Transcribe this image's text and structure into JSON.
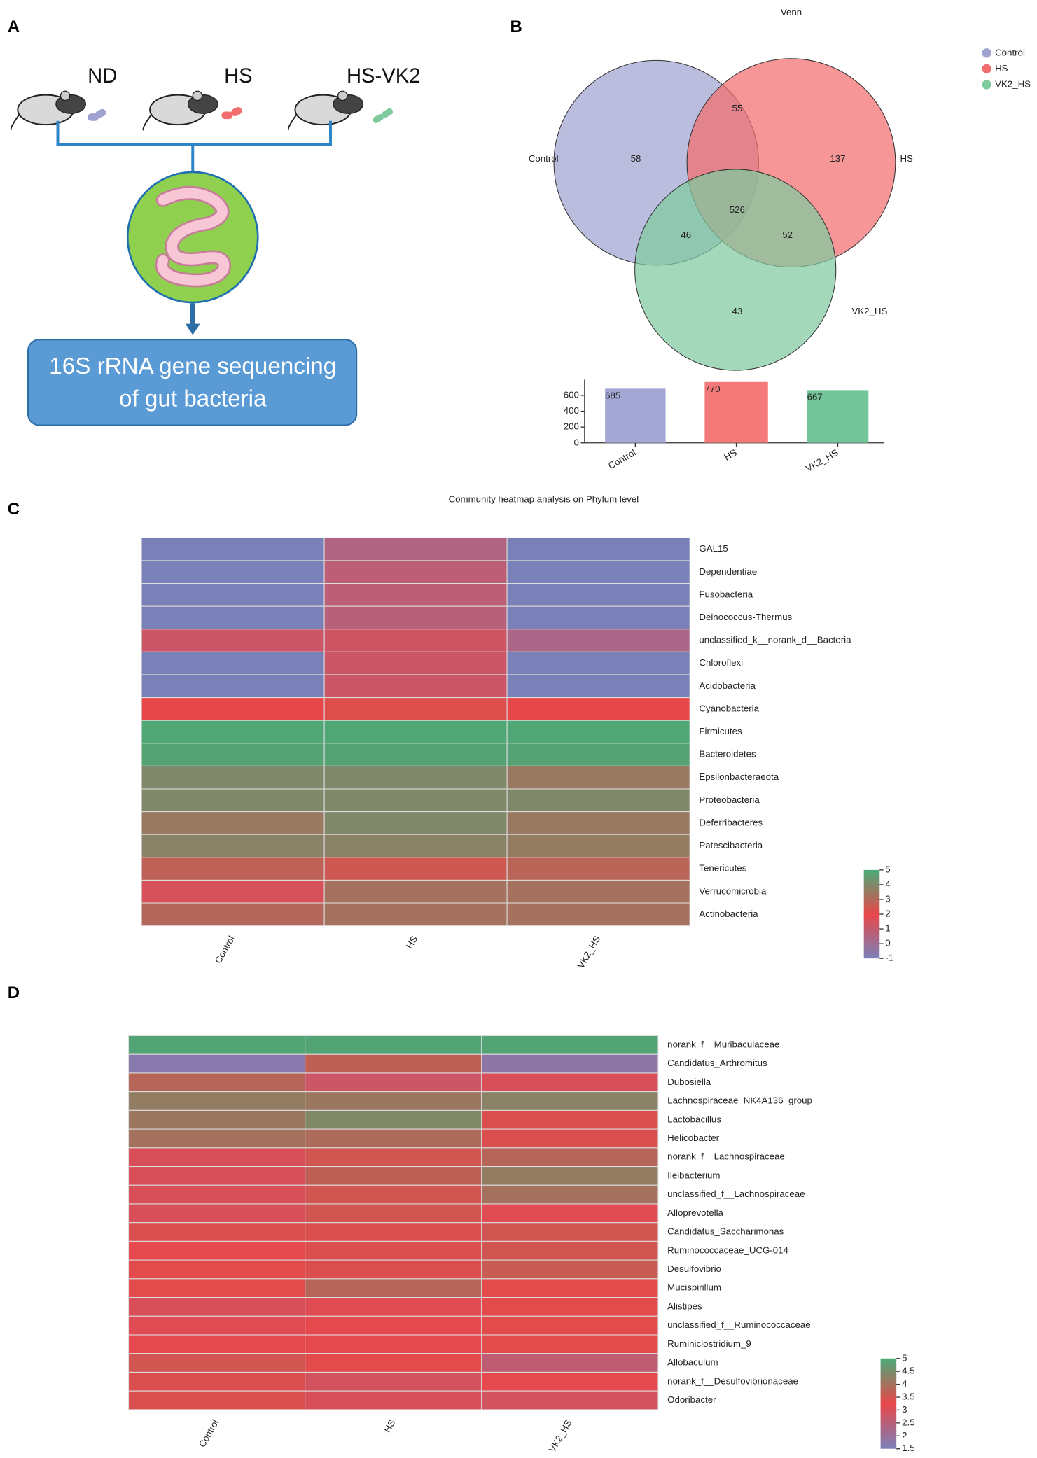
{
  "panels": {
    "labels": [
      "A",
      "B",
      "C",
      "D"
    ]
  },
  "diagram": {
    "groups": [
      "ND",
      "HS",
      "HS-VK2"
    ],
    "box_lines": [
      "16S rRNA gene sequencing",
      "of gut bacteria"
    ]
  },
  "chart_data": [
    {
      "type": "venn",
      "title": "Venn",
      "sets": [
        {
          "name": "Control",
          "color": "#9fa3d1"
        },
        {
          "name": "HS",
          "color": "#f26d6d"
        },
        {
          "name": "VK2_HS",
          "color": "#7fcb9f"
        }
      ],
      "regions": [
        {
          "sets": [
            0
          ],
          "value": 58
        },
        {
          "sets": [
            0,
            1
          ],
          "value": 55
        },
        {
          "sets": [
            1
          ],
          "value": 137
        },
        {
          "sets": [
            0,
            2
          ],
          "value": 46
        },
        {
          "sets": [
            0,
            1,
            2
          ],
          "value": 526
        },
        {
          "sets": [
            1,
            2
          ],
          "value": 52
        },
        {
          "sets": [
            2
          ],
          "value": 43
        }
      ]
    },
    {
      "type": "bar",
      "categories": [
        "Control",
        "HS",
        "VK2_HS"
      ],
      "values": [
        685,
        770,
        667
      ],
      "colors": [
        "#a3a8d4",
        "#f47a7a",
        "#74c69a"
      ],
      "ylim": [
        0,
        800
      ],
      "yticks": [
        0,
        200,
        400,
        600
      ]
    },
    {
      "type": "heatmap",
      "title": "Community heatmap analysis on Phylum level",
      "columns": [
        "Control",
        "HS",
        "VK2_HS"
      ],
      "rows": [
        "GAL15",
        "Dependentiae",
        "Fusobacteria",
        "Deinococcus-Thermus",
        "unclassified_k__norank_d__Bacteria",
        "Chloroflexi",
        "Acidobacteria",
        "Cyanobacteria",
        "Firmicutes",
        "Bacteroidetes",
        "Epsilonbacteraeota",
        "Proteobacteria",
        "Deferribacteres",
        "Patescibacteria",
        "Tenericutes",
        "Verrucomicrobia",
        "Actinobacteria"
      ],
      "values": [
        [
          -1,
          0.5,
          -1
        ],
        [
          -1,
          0.8,
          -1
        ],
        [
          -1,
          0.8,
          -1
        ],
        [
          -1,
          0.7,
          -1
        ],
        [
          1.2,
          1.3,
          0.3
        ],
        [
          -1,
          1.2,
          -1
        ],
        [
          -1,
          1.2,
          -1
        ],
        [
          2,
          2.2,
          2
        ],
        [
          4.9,
          4.9,
          4.9
        ],
        [
          4.8,
          4.8,
          4.8
        ],
        [
          4,
          4,
          3.5
        ],
        [
          4,
          4,
          4
        ],
        [
          3.5,
          4,
          3.5
        ],
        [
          3.8,
          3.8,
          3.6
        ],
        [
          2.8,
          2.5,
          2.9
        ],
        [
          1.5,
          3.3,
          3.3
        ],
        [
          3,
          3.3,
          3.3
        ]
      ],
      "colorscale": [
        "#7a80b8",
        "#e8474a",
        "#4aaa78"
      ],
      "zlim": [
        -1,
        5
      ],
      "zticks": [
        -1,
        0,
        1,
        2,
        3,
        4,
        5
      ]
    },
    {
      "type": "heatmap",
      "columns": [
        "Control",
        "HS",
        "VK2_HS"
      ],
      "rows": [
        "norank_f__Muribaculaceae",
        "Candidatus_Arthromitus",
        "Dubosiella",
        "Lachnospiraceae_NK4A136_group",
        "Lactobacillus",
        "Helicobacter",
        "norank_f__Lachnospiraceae",
        "Ileibacterium",
        "unclassified_f__Lachnospiraceae",
        "Alloprevotella",
        "Candidatus_Saccharimonas",
        "Ruminococcaceae_UCG-014",
        "Desulfovibrio",
        "Mucispirillum",
        "Alistipes",
        "unclassified_f__Ruminococcaceae",
        "Ruminiclostridium_9",
        "Allobaculum",
        "norank_f__Desulfovibrionaceae",
        "Odoribacter"
      ],
      "values": [
        [
          4.9,
          4.9,
          4.9
        ],
        [
          1.7,
          3.7,
          1.8
        ],
        [
          3.8,
          2.8,
          3.0
        ],
        [
          4.2,
          4.1,
          4.3
        ],
        [
          4.1,
          4.4,
          3.4
        ],
        [
          4.0,
          3.9,
          3.4
        ],
        [
          3.0,
          3.5,
          3.8
        ],
        [
          3.0,
          3.7,
          4.2
        ],
        [
          3.0,
          3.5,
          4.0
        ],
        [
          3.0,
          3.5,
          3.1
        ],
        [
          3.4,
          3.4,
          3.5
        ],
        [
          3.2,
          3.4,
          3.5
        ],
        [
          3.3,
          3.4,
          3.6
        ],
        [
          3.3,
          3.8,
          3.3
        ],
        [
          3.0,
          3.1,
          3.3
        ],
        [
          3.1,
          3.2,
          3.3
        ],
        [
          3.2,
          3.2,
          3.3
        ],
        [
          3.5,
          3.3,
          2.6
        ],
        [
          3.4,
          2.9,
          3.2
        ],
        [
          3.4,
          3.0,
          2.9
        ]
      ],
      "colorscale": [
        "#7a80b8",
        "#e8474a",
        "#4aaa78"
      ],
      "zlim": [
        1.5,
        5
      ],
      "zticks": [
        1.5,
        2,
        2.5,
        3,
        3.5,
        4,
        4.5,
        5
      ]
    }
  ]
}
